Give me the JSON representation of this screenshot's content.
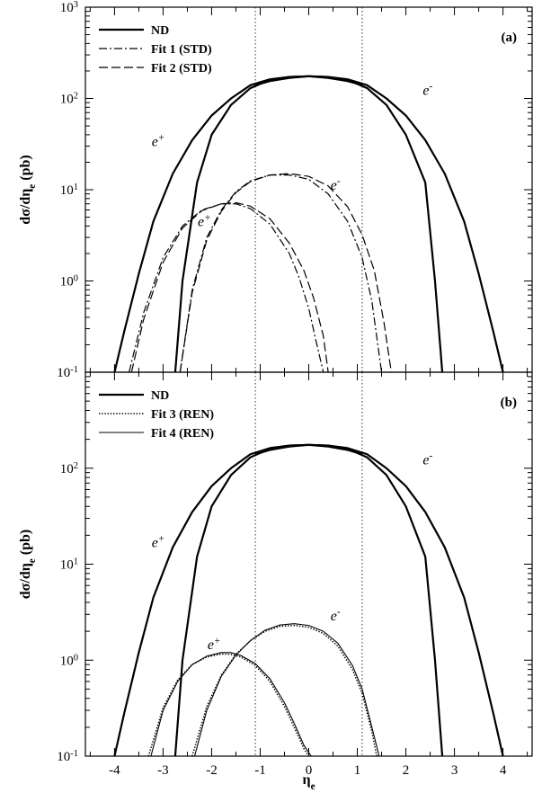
{
  "chart_data": [
    {
      "type": "line",
      "panel_label": "(a)",
      "xlabel": "",
      "ylabel": "dσ/dη",
      "ylabel_sub": "e",
      "ylabel_unit": " (pb)",
      "xlim": [
        -4.6,
        4.6
      ],
      "ylim": [
        0.1,
        1000
      ],
      "yscale": "log",
      "xticks": [
        -4,
        -3,
        -2,
        -1,
        0,
        1,
        2,
        3,
        4
      ],
      "yticks": [
        {
          "value": 0.1,
          "mant": "10",
          "exp": "-1"
        },
        {
          "value": 1,
          "mant": "10",
          "exp": "0"
        },
        {
          "value": 10,
          "mant": "10",
          "exp": "1"
        },
        {
          "value": 100,
          "mant": "10",
          "exp": "2"
        },
        {
          "value": 1000,
          "mant": "10",
          "exp": "3"
        }
      ],
      "vlines": [
        -1.1,
        1.1
      ],
      "legend_position": "top-left",
      "legend": [
        {
          "label": "ND",
          "style": "solid-thick"
        },
        {
          "label": "Fit 1 (STD)",
          "style": "dashdot"
        },
        {
          "label": "Fit 2 (STD)",
          "style": "longdash"
        }
      ],
      "annotations": [
        {
          "base": "e",
          "sup": "+",
          "x": -3.1,
          "y": 30
        },
        {
          "base": "e",
          "sup": "-",
          "x": 2.45,
          "y": 110
        },
        {
          "base": "e",
          "sup": "+",
          "x": -2.15,
          "y": 4
        },
        {
          "base": "e",
          "sup": "-",
          "x": 0.55,
          "y": 10
        }
      ],
      "series": [
        {
          "legend_index": 0,
          "style": "solid-thick",
          "x": [
            -4.0,
            -3.8,
            -3.5,
            -3.2,
            -2.8,
            -2.4,
            -2.0,
            -1.6,
            -1.2,
            -0.8,
            -0.4,
            0.0,
            0.4,
            0.8,
            1.1
          ],
          "y": [
            0.1,
            0.28,
            1.2,
            4.5,
            15,
            35,
            65,
            100,
            140,
            162,
            172,
            175,
            168,
            155,
            140
          ]
        },
        {
          "legend_index": 0,
          "style": "solid-thick",
          "x": [
            -1.1,
            -0.8,
            -0.4,
            0.0,
            0.4,
            0.8,
            1.2,
            1.6,
            2.0,
            2.4,
            2.8,
            3.2,
            3.5,
            3.8,
            4.0
          ],
          "y": [
            140,
            155,
            168,
            175,
            172,
            162,
            140,
            100,
            65,
            35,
            15,
            4.5,
            1.2,
            0.28,
            0.1
          ]
        },
        {
          "legend_index": 0,
          "style": "solid-thick",
          "x": [
            -2.75,
            -2.6,
            -2.3,
            -2.0,
            -1.6,
            -1.2,
            -0.8,
            -0.4,
            0.0,
            0.4,
            0.8,
            1.2,
            1.6,
            2.0,
            2.4,
            2.6,
            2.75
          ],
          "y": [
            0.1,
            1.0,
            12,
            40,
            85,
            130,
            160,
            172,
            175,
            172,
            160,
            130,
            85,
            40,
            12,
            1.0,
            0.1
          ]
        },
        {
          "legend_index": 1,
          "style": "dashdot",
          "x": [
            -3.7,
            -3.4,
            -3.0,
            -2.6,
            -2.2,
            -1.8,
            -1.5,
            -1.2,
            -0.8,
            -0.4,
            -0.2,
            0.0,
            0.15,
            0.3
          ],
          "y": [
            0.1,
            0.45,
            1.8,
            4.0,
            6.0,
            7.0,
            7.0,
            6.2,
            4.2,
            2.0,
            1.1,
            0.5,
            0.22,
            0.1
          ]
        },
        {
          "legend_index": 2,
          "style": "longdash",
          "x": [
            -3.65,
            -3.4,
            -3.0,
            -2.6,
            -2.2,
            -1.8,
            -1.5,
            -1.2,
            -0.8,
            -0.4,
            -0.1,
            0.1,
            0.3,
            0.4
          ],
          "y": [
            0.1,
            0.38,
            1.6,
            3.8,
            5.9,
            7.0,
            7.2,
            6.6,
            4.8,
            2.6,
            1.3,
            0.65,
            0.25,
            0.1
          ]
        },
        {
          "legend_index": 1,
          "style": "dashdot",
          "x": [
            -2.65,
            -2.4,
            -2.1,
            -1.8,
            -1.5,
            -1.2,
            -0.8,
            -0.4,
            0.0,
            0.4,
            0.8,
            1.1,
            1.3,
            1.5
          ],
          "y": [
            0.1,
            0.8,
            3.0,
            6.0,
            9.5,
            12.5,
            14.5,
            14.5,
            13.0,
            9.0,
            4.5,
            1.8,
            0.6,
            0.1
          ]
        },
        {
          "legend_index": 2,
          "style": "longdash",
          "x": [
            -2.65,
            -2.4,
            -2.1,
            -1.8,
            -1.5,
            -1.2,
            -0.8,
            -0.4,
            0.0,
            0.4,
            0.8,
            1.1,
            1.35,
            1.55,
            1.7
          ],
          "y": [
            0.1,
            0.75,
            2.8,
            5.8,
            9.3,
            12.3,
            14.5,
            15.0,
            14.0,
            11.0,
            6.5,
            3.2,
            1.3,
            0.35,
            0.1
          ]
        }
      ]
    },
    {
      "type": "line",
      "panel_label": "(b)",
      "xlabel": "η",
      "xlabel_sub": "e",
      "ylabel": "dσ/dη",
      "ylabel_sub": "e",
      "ylabel_unit": " (pb)",
      "xlim": [
        -4.6,
        4.6
      ],
      "ylim": [
        0.1,
        1000
      ],
      "yscale": "log",
      "xticks": [
        -4,
        -3,
        -2,
        -1,
        0,
        1,
        2,
        3,
        4
      ],
      "yticks": [
        {
          "value": 0.1,
          "mant": "10",
          "exp": "-1"
        },
        {
          "value": 1,
          "mant": "10",
          "exp": "0"
        },
        {
          "value": 10,
          "mant": "10",
          "exp": "1"
        },
        {
          "value": 100,
          "mant": "10",
          "exp": "2"
        }
      ],
      "vlines": [
        -1.1,
        1.1
      ],
      "legend_position": "top-left",
      "legend": [
        {
          "label": "ND",
          "style": "solid-thick"
        },
        {
          "label": "Fit 3 (REN)",
          "style": "dotted"
        },
        {
          "label": "Fit 4 (REN)",
          "style": "solid-thin"
        }
      ],
      "annotations": [
        {
          "base": "e",
          "sup": "+",
          "x": -3.1,
          "y": 15
        },
        {
          "base": "e",
          "sup": "-",
          "x": 2.45,
          "y": 110
        },
        {
          "base": "e",
          "sup": "+",
          "x": -1.95,
          "y": 1.3
        },
        {
          "base": "e",
          "sup": "-",
          "x": 0.55,
          "y": 2.6
        }
      ],
      "series": [
        {
          "legend_index": 0,
          "style": "solid-thick",
          "x": [
            -4.0,
            -3.8,
            -3.5,
            -3.2,
            -2.8,
            -2.4,
            -2.0,
            -1.6,
            -1.2,
            -0.8,
            -0.4,
            0.0,
            0.4,
            0.8,
            1.1
          ],
          "y": [
            0.1,
            0.28,
            1.2,
            4.5,
            15,
            35,
            65,
            100,
            140,
            162,
            172,
            175,
            168,
            155,
            140
          ]
        },
        {
          "legend_index": 0,
          "style": "solid-thick",
          "x": [
            -1.1,
            -0.8,
            -0.4,
            0.0,
            0.4,
            0.8,
            1.2,
            1.6,
            2.0,
            2.4,
            2.8,
            3.2,
            3.5,
            3.8,
            4.0
          ],
          "y": [
            140,
            155,
            168,
            175,
            172,
            162,
            140,
            100,
            65,
            35,
            15,
            4.5,
            1.2,
            0.28,
            0.1
          ]
        },
        {
          "legend_index": 0,
          "style": "solid-thick",
          "x": [
            -2.75,
            -2.6,
            -2.3,
            -2.0,
            -1.6,
            -1.2,
            -0.8,
            -0.4,
            0.0,
            0.4,
            0.8,
            1.2,
            1.6,
            2.0,
            2.4,
            2.6,
            2.75
          ],
          "y": [
            0.1,
            1.0,
            12,
            40,
            85,
            130,
            160,
            172,
            175,
            172,
            160,
            130,
            85,
            40,
            12,
            1.0,
            0.1
          ]
        },
        {
          "legend_index": 1,
          "style": "dotted",
          "x": [
            -3.3,
            -3.0,
            -2.7,
            -2.4,
            -2.1,
            -1.8,
            -1.6,
            -1.4,
            -1.1,
            -0.8,
            -0.5,
            -0.3,
            -0.1,
            0.0
          ],
          "y": [
            0.1,
            0.32,
            0.62,
            0.9,
            1.08,
            1.16,
            1.15,
            1.08,
            0.88,
            0.6,
            0.33,
            0.2,
            0.12,
            0.1
          ]
        },
        {
          "legend_index": 2,
          "style": "solid-thin",
          "x": [
            -3.25,
            -3.0,
            -2.7,
            -2.4,
            -2.1,
            -1.8,
            -1.6,
            -1.4,
            -1.1,
            -0.8,
            -0.5,
            -0.3,
            -0.1,
            0.05
          ],
          "y": [
            0.1,
            0.3,
            0.6,
            0.9,
            1.1,
            1.2,
            1.2,
            1.12,
            0.92,
            0.64,
            0.36,
            0.22,
            0.13,
            0.1
          ]
        },
        {
          "legend_index": 1,
          "style": "dotted",
          "x": [
            -2.4,
            -2.1,
            -1.8,
            -1.5,
            -1.2,
            -0.9,
            -0.6,
            -0.3,
            0.0,
            0.3,
            0.6,
            0.9,
            1.1,
            1.3,
            1.4
          ],
          "y": [
            0.1,
            0.33,
            0.7,
            1.15,
            1.6,
            2.0,
            2.25,
            2.3,
            2.2,
            1.9,
            1.4,
            0.8,
            0.45,
            0.18,
            0.1
          ]
        },
        {
          "legend_index": 2,
          "style": "solid-thin",
          "x": [
            -2.35,
            -2.1,
            -1.8,
            -1.5,
            -1.2,
            -0.9,
            -0.6,
            -0.3,
            0.0,
            0.3,
            0.6,
            0.9,
            1.1,
            1.3,
            1.45
          ],
          "y": [
            0.1,
            0.3,
            0.68,
            1.13,
            1.6,
            2.05,
            2.32,
            2.4,
            2.3,
            2.0,
            1.5,
            0.88,
            0.5,
            0.2,
            0.1
          ]
        }
      ]
    }
  ]
}
